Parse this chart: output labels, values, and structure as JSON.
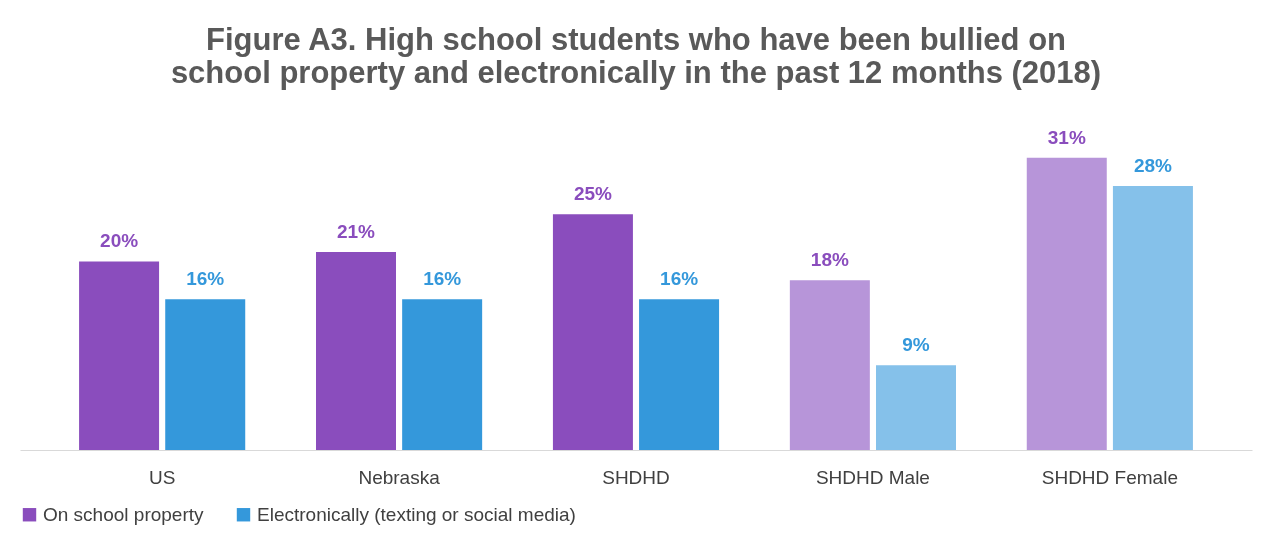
{
  "chart_data": {
    "type": "bar",
    "title": "Figure A3. High school students who have been bullied on\nschool property and electronically in the past 12 months (2018)",
    "categories": [
      "US",
      "Nebraska",
      "SHDHD",
      "SHDHD Male",
      "SHDHD Female"
    ],
    "series": [
      {
        "name": "On school property",
        "color": "#8a4dbd",
        "colors": [
          "#8a4dbd",
          "#8a4dbd",
          "#8a4dbd",
          "#b795d9",
          "#b795d9"
        ],
        "values": [
          20,
          21,
          25,
          18,
          31
        ],
        "value_labels": [
          "20%",
          "21%",
          "25%",
          "18%",
          "31%"
        ]
      },
      {
        "name": "Electronically (texting or social media)",
        "color": "#3498db",
        "colors": [
          "#3498db",
          "#3498db",
          "#3498db",
          "#85c1ea",
          "#85c1ea"
        ],
        "values": [
          16,
          16,
          16,
          9,
          28
        ],
        "value_labels": [
          "16%",
          "16%",
          "16%",
          "9%",
          "28%"
        ]
      }
    ],
    "legend": "bottom",
    "grid": false
  }
}
